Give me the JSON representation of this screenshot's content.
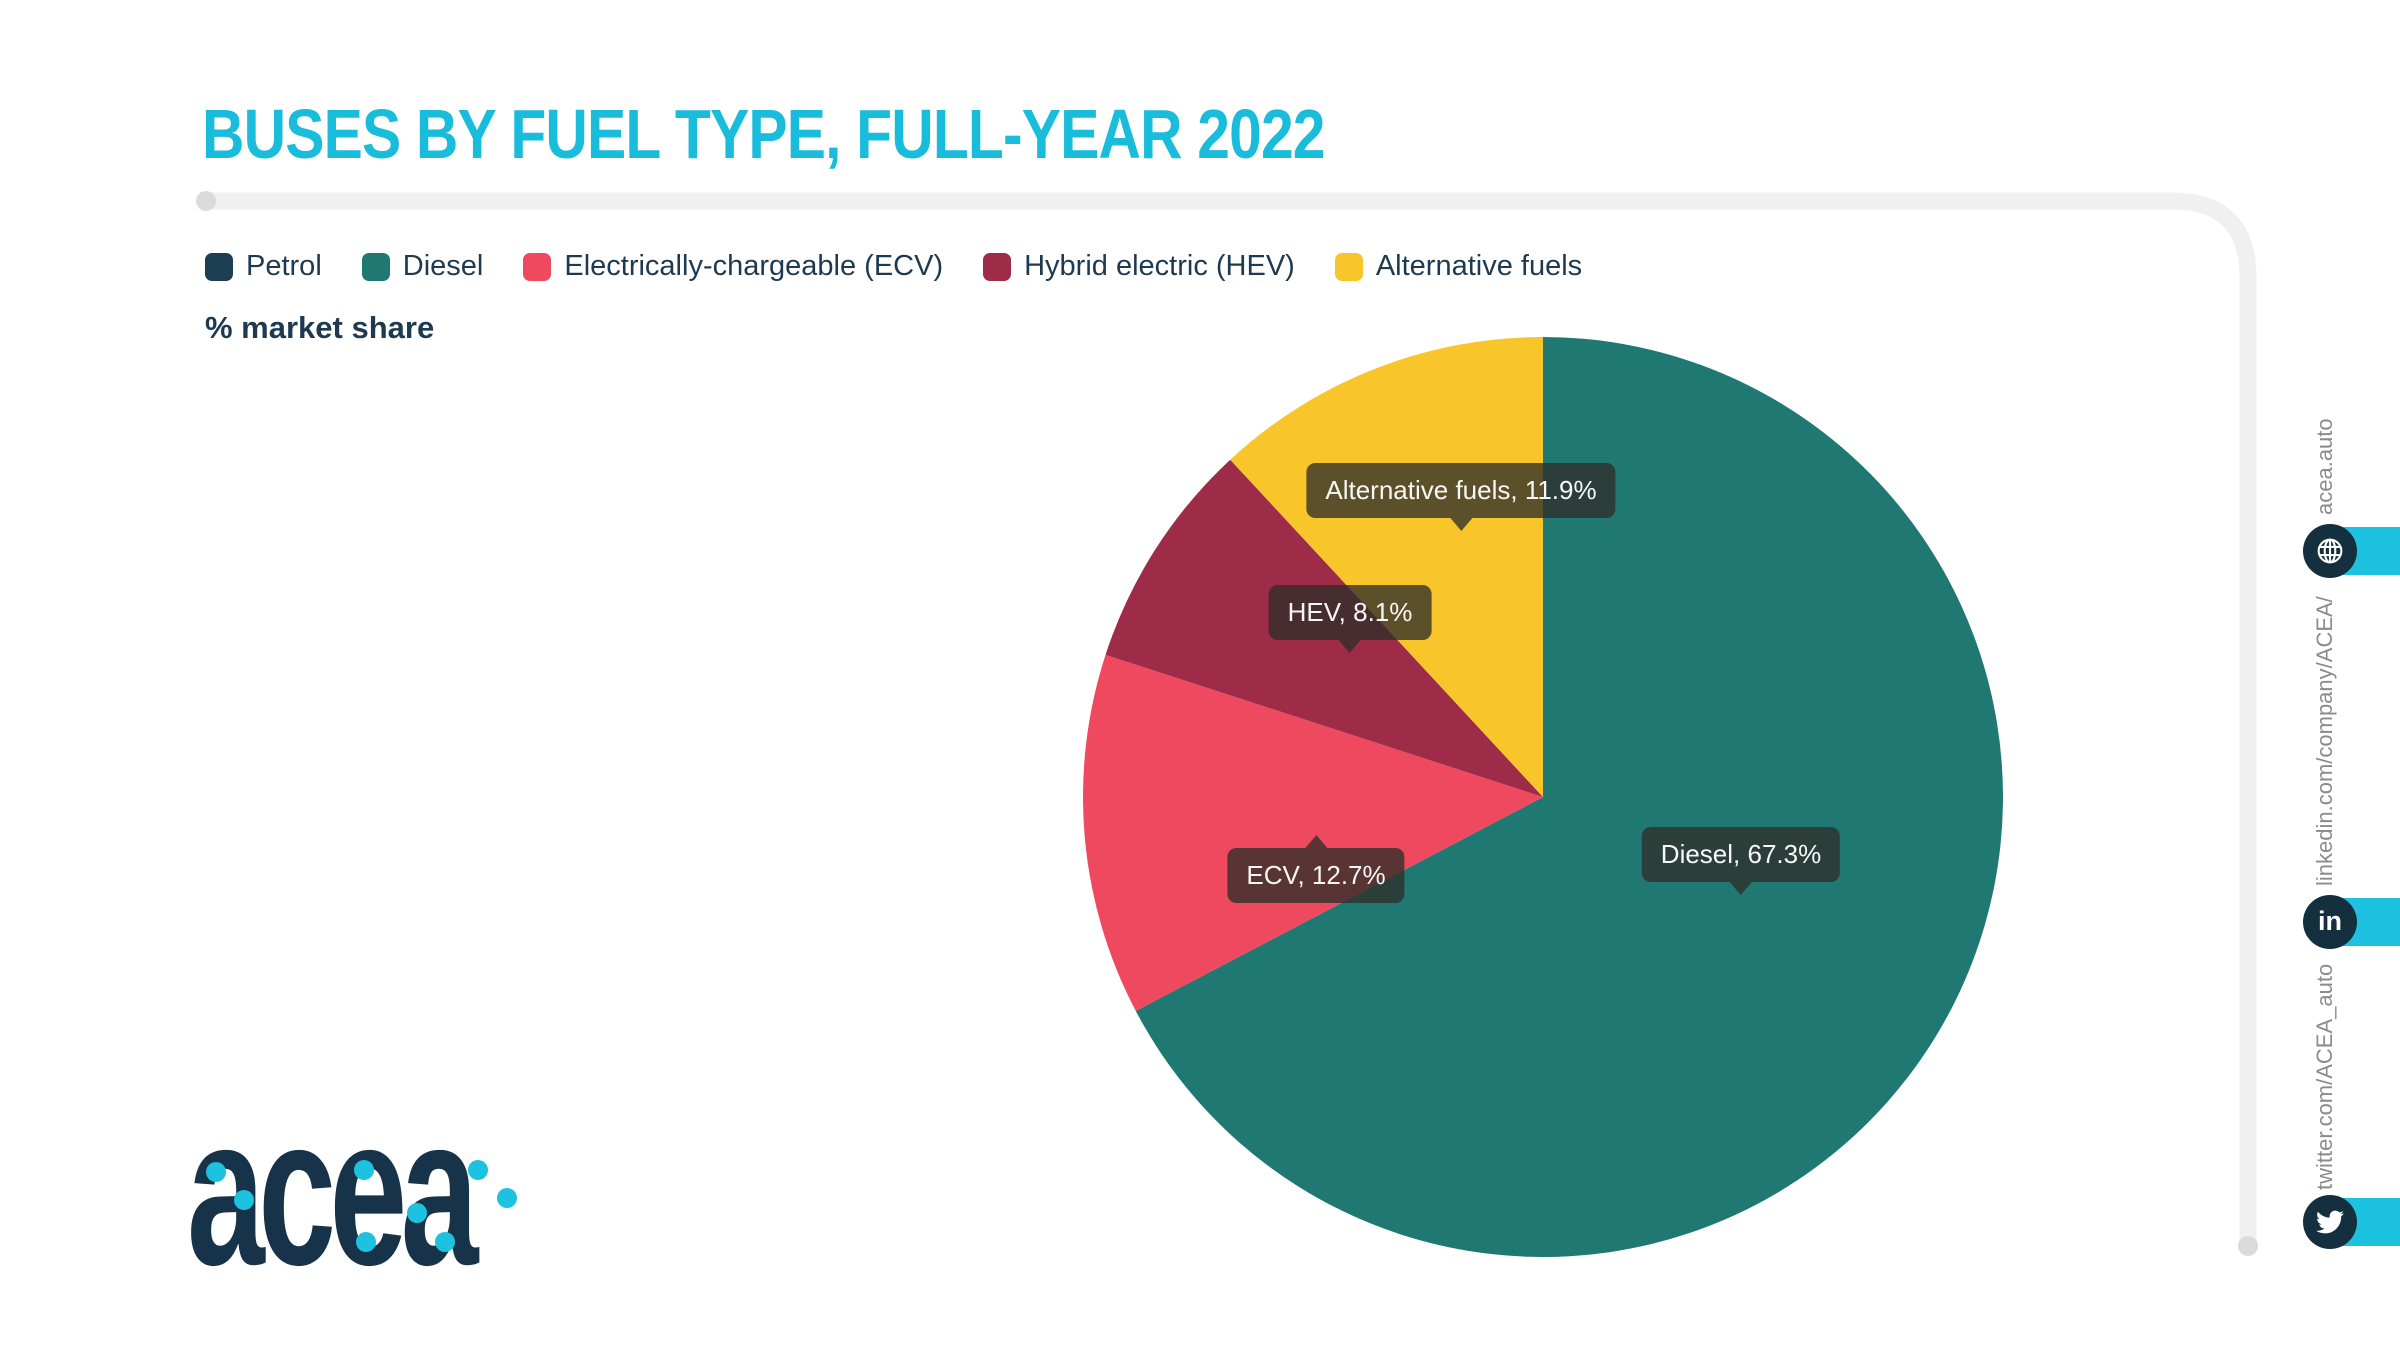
{
  "page": {
    "title": "BUSES BY FUEL TYPE, FULL-YEAR 2022"
  },
  "chart_data": {
    "type": "pie",
    "title": "BUSES BY FUEL TYPE, FULL-YEAR 2022",
    "unit_label": "% market share",
    "legend_position": "top",
    "start_angle_deg": 0,
    "direction": "clockwise",
    "series": [
      {
        "name": "Petrol",
        "value": 0.0,
        "color": "#1D3D53"
      },
      {
        "name": "Diesel",
        "value": 67.3,
        "color": "#1F7872"
      },
      {
        "name": "Electrically-chargeable (ECV)",
        "value": 12.7,
        "color": "#EE495E"
      },
      {
        "name": "Hybrid electric (HEV)",
        "value": 8.1,
        "color": "#9E2B47"
      },
      {
        "name": "Alternative fuels",
        "value": 11.9,
        "color": "#F8C62B"
      }
    ],
    "callouts": {
      "alternative_fuels": {
        "text": "Alternative fuels, 11.9%"
      },
      "hev": {
        "text": "HEV, 8.1%"
      },
      "ecv": {
        "text": "ECV, 12.7%"
      },
      "diesel": {
        "text": "Diesel, 67.3%"
      }
    }
  },
  "logo": {
    "text": "acea"
  },
  "sidebar": {
    "links": [
      {
        "label": "acea.auto",
        "icon": "globe-icon"
      },
      {
        "label": "linkedin.com/company/ACEA/",
        "icon": "linkedin-icon",
        "icon_glyph": "in"
      },
      {
        "label": "twitter.com/ACEA_auto",
        "icon": "twitter-icon"
      }
    ]
  },
  "theme": {
    "accent": "#1EC2E1",
    "title_color": "#19BCDB",
    "navy": "#1D3A50",
    "frame": "#F0F0F0",
    "tooltip_bg": "rgba(48,46,42,0.78)"
  }
}
